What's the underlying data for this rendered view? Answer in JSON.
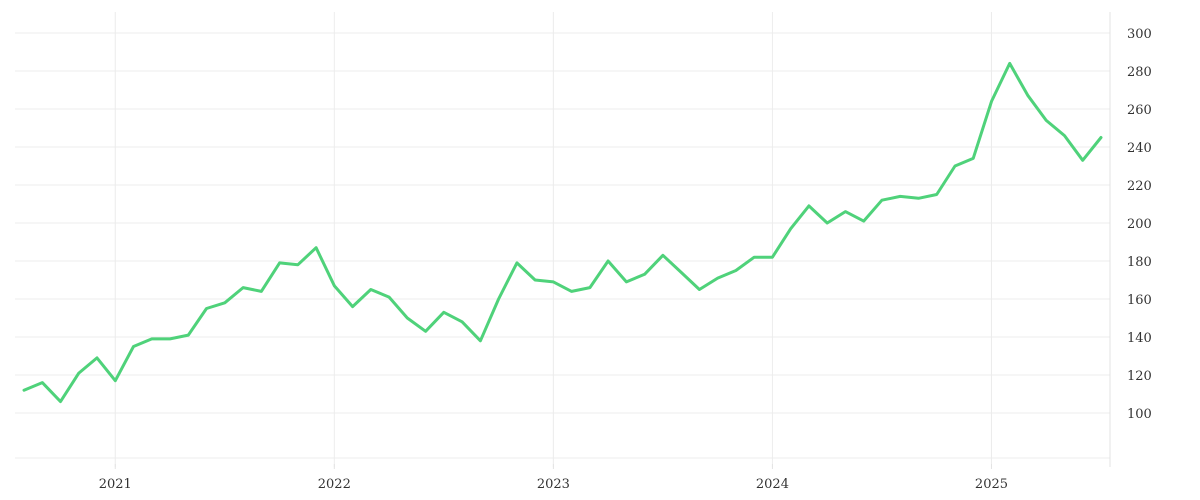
{
  "chart_data": {
    "type": "line",
    "title": "",
    "xlabel": "",
    "ylabel": "",
    "x_tick_labels": [
      "2021",
      "2022",
      "2023",
      "2024",
      "2025"
    ],
    "y_tick_labels": [
      "100",
      "120",
      "140",
      "160",
      "180",
      "200",
      "220",
      "240",
      "260",
      "280",
      "300"
    ],
    "ylim": [
      80,
      310
    ],
    "xlim": [
      "2020-08",
      "2025-08"
    ],
    "grid": true,
    "y_axis_position": "right",
    "legend": "none",
    "line_color": "#4fd27a",
    "x": [
      "2020-08",
      "2020-09",
      "2020-10",
      "2020-11",
      "2020-12",
      "2021-01",
      "2021-02",
      "2021-03",
      "2021-04",
      "2021-05",
      "2021-06",
      "2021-07",
      "2021-08",
      "2021-09",
      "2021-10",
      "2021-11",
      "2021-12",
      "2022-01",
      "2022-02",
      "2022-03",
      "2022-04",
      "2022-05",
      "2022-06",
      "2022-07",
      "2022-08",
      "2022-09",
      "2022-10",
      "2022-11",
      "2022-12",
      "2023-01",
      "2023-02",
      "2023-03",
      "2023-04",
      "2023-05",
      "2023-06",
      "2023-07",
      "2023-08",
      "2023-09",
      "2023-10",
      "2023-11",
      "2023-12",
      "2024-01",
      "2024-02",
      "2024-03",
      "2024-04",
      "2024-05",
      "2024-06",
      "2024-07",
      "2024-08",
      "2024-09",
      "2024-10",
      "2024-11",
      "2024-12",
      "2025-01",
      "2025-02",
      "2025-03",
      "2025-04",
      "2025-05",
      "2025-06",
      "2025-07"
    ],
    "series": [
      {
        "values": [
          112,
          116,
          106,
          121,
          129,
          117,
          135,
          139,
          139,
          141,
          155,
          158,
          166,
          164,
          179,
          178,
          187,
          167,
          156,
          165,
          161,
          150,
          143,
          153,
          148,
          138,
          160,
          179,
          170,
          169,
          164,
          166,
          180,
          169,
          173,
          183,
          174,
          165,
          171,
          175,
          182,
          182,
          197,
          209,
          200,
          206,
          201,
          212,
          214,
          213,
          215,
          230,
          234,
          264,
          284,
          267,
          254,
          246,
          233,
          245
        ]
      }
    ]
  }
}
